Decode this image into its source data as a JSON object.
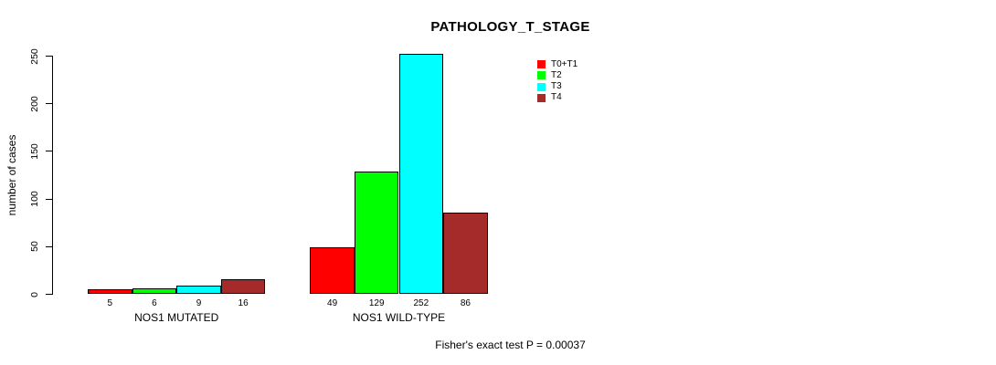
{
  "chart_data": {
    "type": "bar",
    "title": "PATHOLOGY_T_STAGE",
    "ylabel": "number of cases",
    "xlabel": "",
    "ylim": [
      0,
      250
    ],
    "yticks": [
      0,
      50,
      100,
      150,
      200,
      250
    ],
    "grid": false,
    "categories": [
      "NOS1 MUTATED",
      "NOS1 WILD-TYPE"
    ],
    "series": [
      {
        "name": "T0+T1",
        "color": "#ff0000",
        "values": [
          5,
          49
        ]
      },
      {
        "name": "T2",
        "color": "#00ff00",
        "values": [
          6,
          129
        ]
      },
      {
        "name": "T3",
        "color": "#00ffff",
        "values": [
          9,
          252
        ]
      },
      {
        "name": "T4",
        "color": "#a52a2a",
        "values": [
          16,
          86
        ]
      }
    ],
    "bar_value_labels": [
      [
        "5",
        "6",
        "9",
        "16"
      ],
      [
        "49",
        "129",
        "252",
        "86"
      ]
    ],
    "legend": {
      "position": "top-right-inside",
      "entries": [
        "T0+T1",
        "T2",
        "T3",
        "T4"
      ]
    },
    "annotation": "Fisher's exact test P = 0.00037",
    "colors": {
      "background": "#ffffff",
      "axis": "#000000",
      "text": "#000000",
      "bar_border": "#000000"
    }
  }
}
